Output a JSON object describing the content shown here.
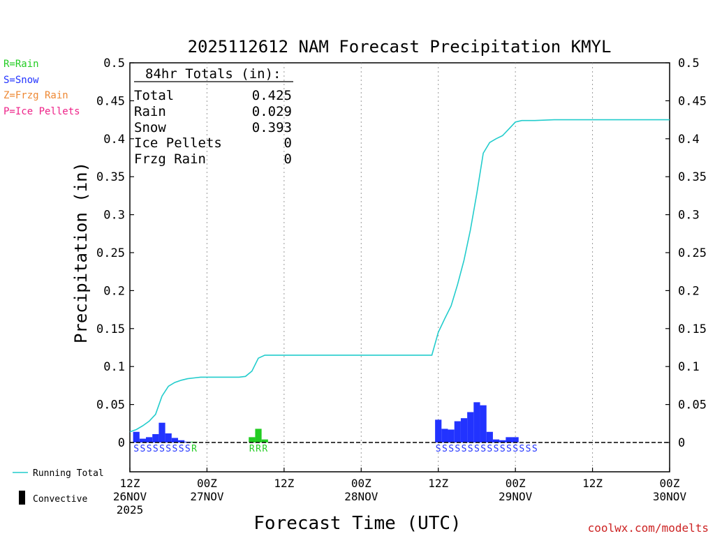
{
  "title": "2025112612 NAM Forecast Precipitation KMYL",
  "legend": {
    "rain": "R=Rain",
    "snow": "S=Snow",
    "frzg_rain": "Z=Frzg Rain",
    "ice_pellets": "P=Ice Pellets",
    "running_total": "Running Total",
    "convective": "Convective"
  },
  "totals": {
    "heading": "84hr Totals (in):",
    "rows": [
      {
        "label": "Total",
        "value": "0.425"
      },
      {
        "label": "Rain",
        "value": "0.029"
      },
      {
        "label": "Snow",
        "value": "0.393"
      },
      {
        "label": "Ice Pellets",
        "value": "0"
      },
      {
        "label": "Frzg Rain",
        "value": "0"
      }
    ]
  },
  "ylabel": "Precipitation (in)",
  "xlabel": "Forecast Time (UTC)",
  "credit": "coolwx.com/modelts",
  "colors": {
    "rain": "#22cc22",
    "snow": "#2233ff",
    "frzg_rain": "#ee8833",
    "ice_pellets": "#ee2288",
    "running_total": "#22cccc",
    "credit": "#cc2222"
  },
  "chart_data": {
    "type": "bar",
    "ylim": [
      0,
      0.5
    ],
    "xlim": [
      0,
      84
    ],
    "yticks": [
      "0",
      "0.05",
      "0.1",
      "0.15",
      "0.2",
      "0.25",
      "0.3",
      "0.35",
      "0.4",
      "0.45",
      "0.5"
    ],
    "xticks": [
      {
        "hour": 0,
        "lines": [
          "12Z",
          "26NOV",
          "2025"
        ]
      },
      {
        "hour": 12,
        "lines": [
          "00Z",
          "27NOV"
        ]
      },
      {
        "hour": 24,
        "lines": [
          "12Z"
        ]
      },
      {
        "hour": 36,
        "lines": [
          "00Z",
          "28NOV"
        ]
      },
      {
        "hour": 48,
        "lines": [
          "12Z"
        ]
      },
      {
        "hour": 60,
        "lines": [
          "00Z",
          "29NOV"
        ]
      },
      {
        "hour": 72,
        "lines": [
          "12Z"
        ]
      },
      {
        "hour": 84,
        "lines": [
          "00Z",
          "30NOV"
        ]
      }
    ],
    "bars": [
      {
        "hour": 1,
        "value": 0.014,
        "ptype": "snow"
      },
      {
        "hour": 2,
        "value": 0.005,
        "ptype": "snow"
      },
      {
        "hour": 3,
        "value": 0.007,
        "ptype": "snow"
      },
      {
        "hour": 4,
        "value": 0.011,
        "ptype": "snow"
      },
      {
        "hour": 5,
        "value": 0.026,
        "ptype": "snow"
      },
      {
        "hour": 6,
        "value": 0.012,
        "ptype": "snow"
      },
      {
        "hour": 7,
        "value": 0.006,
        "ptype": "snow"
      },
      {
        "hour": 8,
        "value": 0.003,
        "ptype": "snow"
      },
      {
        "hour": 9,
        "value": 0.001,
        "ptype": "snow"
      },
      {
        "hour": 10,
        "value": 0.001,
        "ptype": "rain"
      },
      {
        "hour": 19,
        "value": 0.007,
        "ptype": "rain"
      },
      {
        "hour": 20,
        "value": 0.018,
        "ptype": "rain"
      },
      {
        "hour": 21,
        "value": 0.004,
        "ptype": "rain"
      },
      {
        "hour": 48,
        "value": 0.03,
        "ptype": "snow"
      },
      {
        "hour": 49,
        "value": 0.018,
        "ptype": "snow"
      },
      {
        "hour": 50,
        "value": 0.017,
        "ptype": "snow"
      },
      {
        "hour": 51,
        "value": 0.028,
        "ptype": "snow"
      },
      {
        "hour": 52,
        "value": 0.032,
        "ptype": "snow"
      },
      {
        "hour": 53,
        "value": 0.04,
        "ptype": "snow"
      },
      {
        "hour": 54,
        "value": 0.053,
        "ptype": "snow"
      },
      {
        "hour": 55,
        "value": 0.049,
        "ptype": "snow"
      },
      {
        "hour": 56,
        "value": 0.014,
        "ptype": "snow"
      },
      {
        "hour": 57,
        "value": 0.004,
        "ptype": "snow"
      },
      {
        "hour": 58,
        "value": 0.003,
        "ptype": "snow"
      },
      {
        "hour": 59,
        "value": 0.007,
        "ptype": "snow"
      },
      {
        "hour": 60,
        "value": 0.007,
        "ptype": "snow"
      }
    ],
    "running_total": [
      [
        0,
        0.014
      ],
      [
        1,
        0.017
      ],
      [
        2,
        0.022
      ],
      [
        3,
        0.028
      ],
      [
        4,
        0.037
      ],
      [
        5,
        0.061
      ],
      [
        6,
        0.074
      ],
      [
        7,
        0.079
      ],
      [
        8,
        0.082
      ],
      [
        9,
        0.084
      ],
      [
        10,
        0.085
      ],
      [
        11,
        0.086
      ],
      [
        12,
        0.086
      ],
      [
        14,
        0.086
      ],
      [
        16,
        0.086
      ],
      [
        17,
        0.086
      ],
      [
        18,
        0.087
      ],
      [
        19,
        0.094
      ],
      [
        20,
        0.111
      ],
      [
        21,
        0.115
      ],
      [
        23,
        0.115
      ],
      [
        30,
        0.115
      ],
      [
        40,
        0.115
      ],
      [
        47,
        0.115
      ],
      [
        48,
        0.145
      ],
      [
        49,
        0.163
      ],
      [
        50,
        0.18
      ],
      [
        51,
        0.208
      ],
      [
        52,
        0.24
      ],
      [
        53,
        0.28
      ],
      [
        54,
        0.328
      ],
      [
        55,
        0.381
      ],
      [
        56,
        0.395
      ],
      [
        57,
        0.4
      ],
      [
        58,
        0.404
      ],
      [
        59,
        0.413
      ],
      [
        60,
        0.422
      ],
      [
        61,
        0.424
      ],
      [
        63,
        0.424
      ],
      [
        66,
        0.425
      ],
      [
        70,
        0.425
      ],
      [
        84,
        0.425
      ]
    ],
    "ptype_labels": [
      {
        "hour": 1,
        "ptype": "snow",
        "text": "S"
      },
      {
        "hour": 2,
        "ptype": "snow",
        "text": "S"
      },
      {
        "hour": 3,
        "ptype": "snow",
        "text": "S"
      },
      {
        "hour": 4,
        "ptype": "snow",
        "text": "S"
      },
      {
        "hour": 5,
        "ptype": "snow",
        "text": "S"
      },
      {
        "hour": 6,
        "ptype": "snow",
        "text": "S"
      },
      {
        "hour": 7,
        "ptype": "snow",
        "text": "S"
      },
      {
        "hour": 8,
        "ptype": "snow",
        "text": "S"
      },
      {
        "hour": 9,
        "ptype": "snow",
        "text": "S"
      },
      {
        "hour": 10,
        "ptype": "rain",
        "text": "R"
      },
      {
        "hour": 19,
        "ptype": "rain",
        "text": "R"
      },
      {
        "hour": 20,
        "ptype": "rain",
        "text": "R"
      },
      {
        "hour": 21,
        "ptype": "rain",
        "text": "R"
      },
      {
        "hour": 48,
        "ptype": "snow",
        "text": "S"
      },
      {
        "hour": 49,
        "ptype": "snow",
        "text": "S"
      },
      {
        "hour": 50,
        "ptype": "snow",
        "text": "S"
      },
      {
        "hour": 51,
        "ptype": "snow",
        "text": "S"
      },
      {
        "hour": 52,
        "ptype": "snow",
        "text": "S"
      },
      {
        "hour": 53,
        "ptype": "snow",
        "text": "S"
      },
      {
        "hour": 54,
        "ptype": "snow",
        "text": "S"
      },
      {
        "hour": 55,
        "ptype": "snow",
        "text": "S"
      },
      {
        "hour": 56,
        "ptype": "snow",
        "text": "S"
      },
      {
        "hour": 57,
        "ptype": "snow",
        "text": "S"
      },
      {
        "hour": 58,
        "ptype": "snow",
        "text": "S"
      },
      {
        "hour": 59,
        "ptype": "snow",
        "text": "S"
      },
      {
        "hour": 60,
        "ptype": "snow",
        "text": "S"
      },
      {
        "hour": 61,
        "ptype": "snow",
        "text": "S"
      },
      {
        "hour": 62,
        "ptype": "snow",
        "text": "S"
      },
      {
        "hour": 63,
        "ptype": "snow",
        "text": "S"
      }
    ]
  }
}
